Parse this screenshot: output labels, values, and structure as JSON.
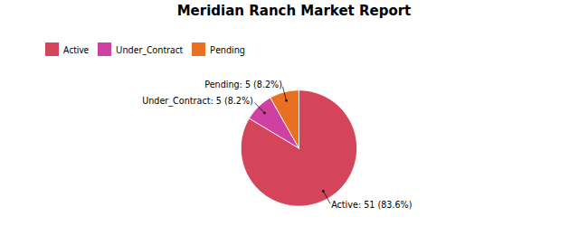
{
  "chart_data": {
    "type": "pie",
    "title": "Meridian Ranch Market Report",
    "categories": [
      "Active",
      "Under_Contract",
      "Pending"
    ],
    "values": [
      51,
      5,
      5
    ],
    "colors": [
      "#d4445a",
      "#d040a0",
      "#e87020"
    ],
    "data_labels": true,
    "value_labels": [
      "Active: 51 (83.6%)",
      "Under_Contract: 5 (8.2%)",
      "Pending: 5 (8.2%)"
    ],
    "legend": "top-left"
  }
}
